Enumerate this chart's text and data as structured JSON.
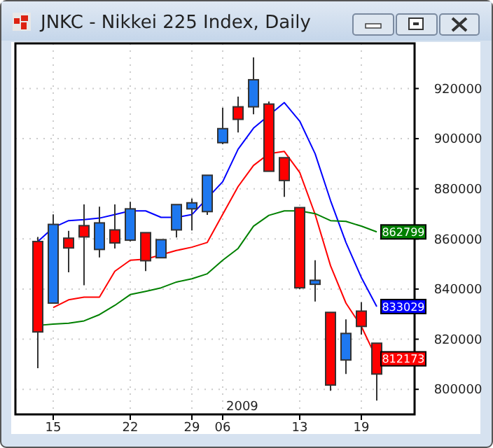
{
  "chart_data": {
    "type": "candlestick",
    "title": "JNKC - Nikkei 225 Index, Daily",
    "categories": [
      null,
      "15",
      null,
      null,
      null,
      null,
      "22",
      null,
      null,
      null,
      "29",
      null,
      "06",
      null,
      null,
      null,
      null,
      "13",
      null,
      null,
      null,
      "19",
      null
    ],
    "ohlc": [
      [
        858960,
        860800,
        808400,
        822900
      ],
      [
        834400,
        869800,
        834400,
        865800
      ],
      [
        860300,
        863200,
        846700,
        856400
      ],
      [
        865300,
        873800,
        841500,
        860800
      ],
      [
        855800,
        872900,
        852600,
        866400
      ],
      [
        863600,
        873800,
        856200,
        858400
      ],
      [
        859500,
        874800,
        859000,
        872000
      ],
      [
        862500,
        862500,
        847200,
        851300
      ],
      [
        852500,
        859700,
        852500,
        859700
      ],
      [
        863600,
        873700,
        860600,
        873700
      ],
      [
        872000,
        876100,
        863400,
        874400
      ],
      [
        870900,
        885400,
        869600,
        885400
      ],
      [
        898400,
        912300,
        897800,
        904000
      ],
      [
        912700,
        916800,
        902500,
        907700
      ],
      [
        912700,
        932400,
        909700,
        923500
      ],
      [
        913800,
        914800,
        887000,
        887000
      ],
      [
        892400,
        892400,
        876800,
        883300
      ],
      [
        872500,
        872500,
        840000,
        840500
      ],
      [
        841900,
        851500,
        835000,
        843500
      ],
      [
        830700,
        830700,
        799400,
        801700
      ],
      [
        811700,
        827900,
        806100,
        822300
      ],
      [
        831200,
        834800,
        821800,
        825100
      ],
      [
        818400,
        818400,
        795500,
        806100
      ]
    ],
    "colors": [
      "#ff0000",
      "#1e78f0",
      "#ff0000",
      "#ff0000",
      "#1e78f0",
      "#ff0000",
      "#1e78f0",
      "#ff0000",
      "#1e78f0",
      "#1e78f0",
      "#1e78f0",
      "#1e78f0",
      "#1e78f0",
      "#ff0000",
      "#1e78f0",
      "#ff0000",
      "#ff0000",
      "#ff0000",
      "#1e78f0",
      "#ff0000",
      "#1e78f0",
      "#ff0000",
      "#ff0000"
    ],
    "series": [
      {
        "type": "line",
        "color": "#0000ff",
        "values": [
          859000,
          864500,
          867300,
          867700,
          868300,
          869700,
          871200,
          871200,
          868600,
          868600,
          869700,
          null,
          882800,
          895800,
          904200,
          null,
          914400,
          907000,
          894000,
          875300,
          858600,
          844600,
          833029
        ],
        "value_labels": [
          null,
          null,
          null,
          null,
          null,
          null,
          null,
          null,
          null,
          null,
          null,
          null,
          null,
          null,
          null,
          null,
          null,
          null,
          null,
          null,
          null,
          null,
          "833029"
        ]
      },
      {
        "type": "line",
        "color": "#ff0000",
        "values": [
          null,
          832600,
          835700,
          836800,
          836800,
          847100,
          851500,
          851900,
          null,
          855400,
          856700,
          858600,
          869800,
          880900,
          889300,
          894000,
          894900,
          886500,
          869800,
          849300,
          834400,
          825100,
          812173
        ],
        "value_labels": [
          null,
          null,
          null,
          null,
          null,
          null,
          null,
          null,
          null,
          null,
          null,
          null,
          null,
          null,
          null,
          null,
          null,
          null,
          null,
          null,
          null,
          null,
          "812173"
        ]
      },
      {
        "type": "line",
        "color": "#008000",
        "values": [
          825500,
          826000,
          826400,
          827300,
          829800,
          833500,
          837800,
          839100,
          840500,
          842800,
          844100,
          846100,
          851500,
          856200,
          865100,
          869400,
          871200,
          871200,
          870100,
          867300,
          867000,
          865100,
          862799
        ],
        "value_labels": [
          null,
          null,
          null,
          null,
          null,
          null,
          null,
          null,
          null,
          null,
          null,
          null,
          null,
          null,
          null,
          null,
          null,
          null,
          null,
          null,
          null,
          null,
          "862799"
        ]
      }
    ],
    "ylim": [
      790000,
      938000
    ],
    "yticks": [
      800000,
      820000,
      840000,
      860000,
      880000,
      900000,
      920000
    ],
    "grid": true,
    "annotations": [
      "2009"
    ]
  }
}
